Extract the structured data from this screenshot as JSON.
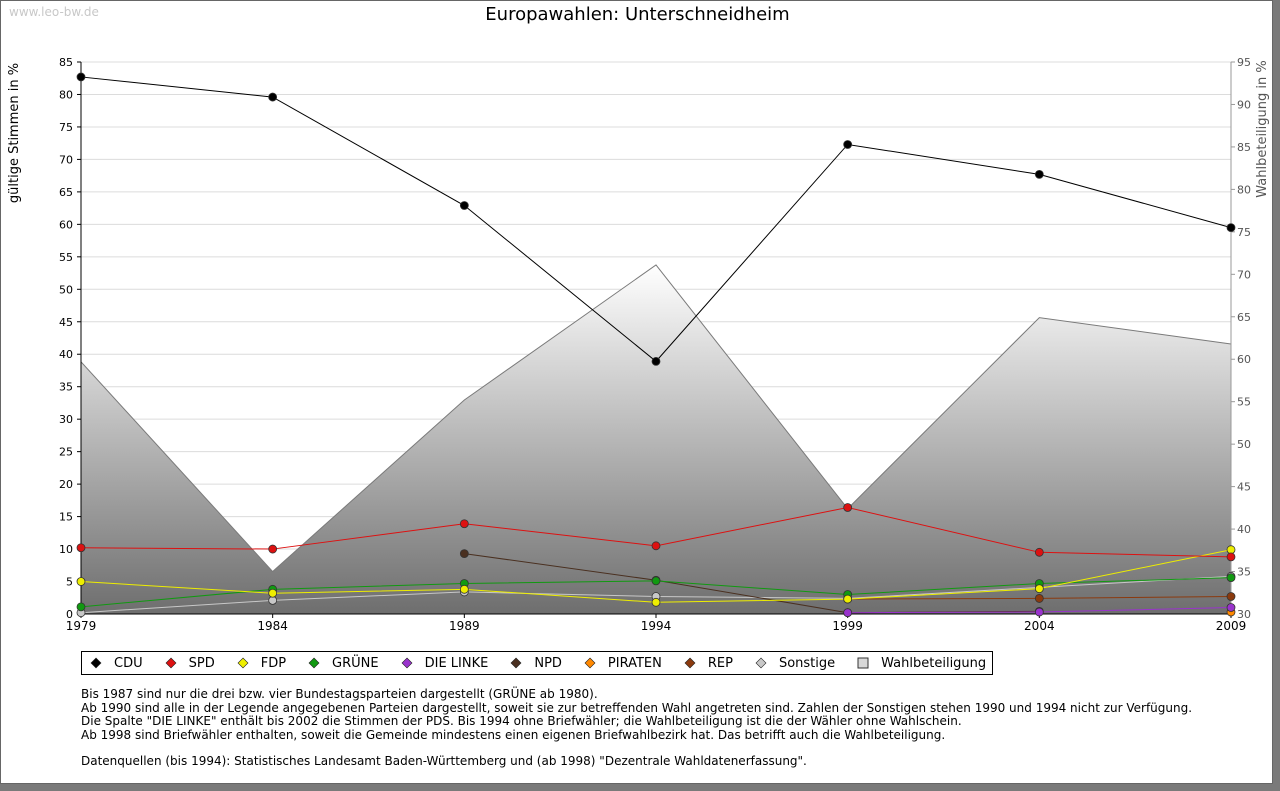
{
  "watermark": "www.leo-bw.de",
  "title": "Europawahlen: Unterschneidheim",
  "chart_data": {
    "type": "line",
    "title": "Europawahlen: Unterschneidheim",
    "x": [
      1979,
      1984,
      1989,
      1994,
      1999,
      2004,
      2009
    ],
    "x_tick_labels": [
      "1979",
      "1984",
      "1989",
      "1994",
      "1999",
      "2004",
      "2009"
    ],
    "ylabel_left": "gültige Stimmen in %",
    "ylabel_right": "Wahlbeteiligung in %",
    "ylim_left": [
      0,
      85
    ],
    "ylim_right": [
      30,
      95
    ],
    "yticks_left": [
      0,
      5,
      10,
      15,
      20,
      25,
      30,
      35,
      40,
      45,
      50,
      55,
      60,
      65,
      70,
      75,
      80,
      85
    ],
    "yticks_right": [
      30,
      35,
      40,
      45,
      50,
      55,
      60,
      65,
      70,
      75,
      80,
      85,
      90,
      95
    ],
    "grid": true,
    "series": [
      {
        "name": "CDU",
        "color": "#000000",
        "axis": "left",
        "values": [
          82.7,
          79.6,
          62.9,
          38.9,
          72.3,
          67.7,
          59.5
        ]
      },
      {
        "name": "SPD",
        "color": "#dd1111",
        "axis": "left",
        "values": [
          10.2,
          10.0,
          13.9,
          10.5,
          16.4,
          9.5,
          8.8
        ]
      },
      {
        "name": "FDP",
        "color": "#eeee00",
        "axis": "left",
        "values": [
          5.0,
          3.2,
          3.8,
          1.8,
          2.3,
          3.9,
          9.9
        ]
      },
      {
        "name": "GRÜNE",
        "color": "#119911",
        "axis": "left",
        "values": [
          1.1,
          3.8,
          4.7,
          5.1,
          3.0,
          4.7,
          5.6
        ]
      },
      {
        "name": "DIE LINKE",
        "color": "#9933cc",
        "axis": "left",
        "values": [
          null,
          null,
          null,
          null,
          0.2,
          0.3,
          1.0
        ]
      },
      {
        "name": "NPD",
        "color": "#4a3020",
        "axis": "left",
        "values": [
          null,
          null,
          9.3,
          5.2,
          0.2,
          0.4,
          null
        ]
      },
      {
        "name": "PIRATEN",
        "color": "#ff8800",
        "axis": "left",
        "values": [
          null,
          null,
          null,
          null,
          null,
          null,
          0.3
        ]
      },
      {
        "name": "REP",
        "color": "#8b3a0e",
        "axis": "left",
        "values": [
          null,
          null,
          null,
          null,
          2.3,
          2.4,
          2.7
        ]
      },
      {
        "name": "Sonstige",
        "color": "#c8c8c8",
        "axis": "left",
        "values": [
          0.2,
          2.1,
          3.4,
          2.7,
          2.4,
          4.1,
          5.8
        ]
      },
      {
        "name": "Wahlbeteiligung",
        "color": "#808080",
        "axis": "right",
        "type": "area",
        "values": [
          59.7,
          35.0,
          55.2,
          71.1,
          42.4,
          64.9,
          61.8
        ]
      }
    ]
  },
  "notes": [
    "Bis 1987 sind nur die drei bzw. vier Bundestagsparteien dargestellt (GRÜNE ab 1980).",
    "Ab 1990 sind alle in der Legende angegebenen Parteien dargestellt, soweit sie zur betreffenden Wahl angetreten sind. Zahlen der Sonstigen stehen 1990 und 1994 nicht zur Verfügung.",
    "Die Spalte \"DIE LINKE\" enthält bis 2002 die Stimmen der PDS. Bis 1994 ohne Briefwähler; die Wahlbeteiligung ist die der Wähler ohne Wahlschein.",
    "Ab 1998 sind Briefwähler enthalten, soweit die Gemeinde mindestens einen eigenen Briefwahlbezirk hat. Das betrifft auch die Wahlbeteiligung."
  ],
  "source": "Datenquellen (bis 1994): Statistisches Landesamt Baden-Württemberg und (ab 1998) \"Dezentrale Wahldatenerfassung\"."
}
